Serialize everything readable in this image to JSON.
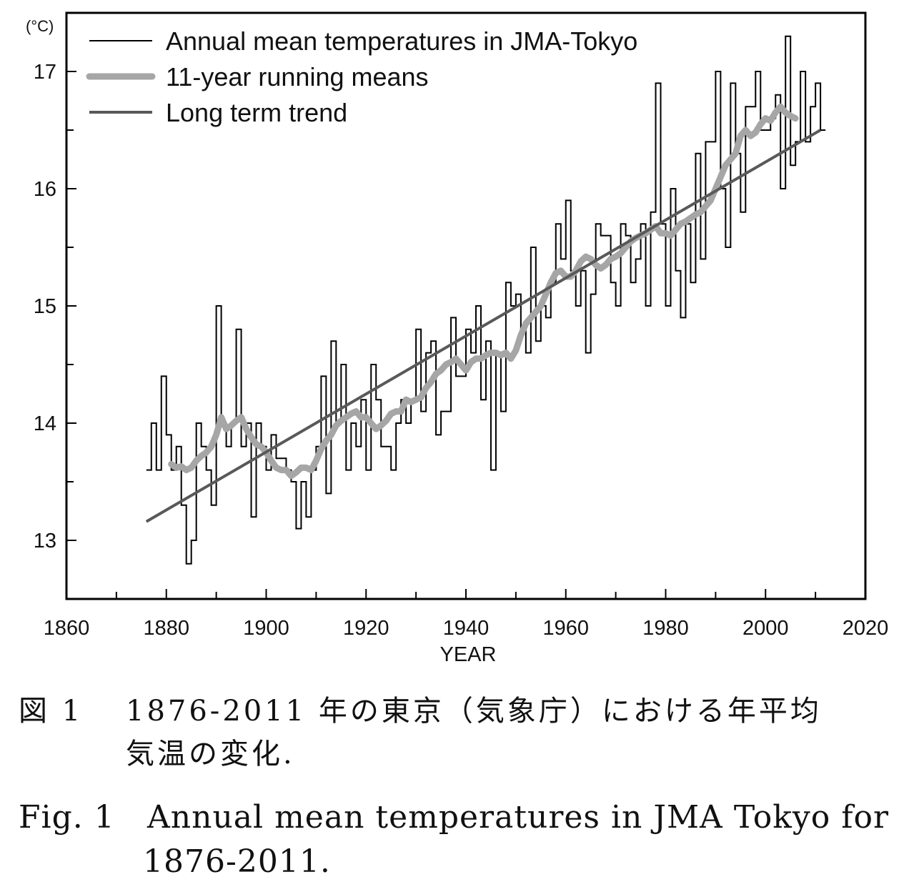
{
  "chart_data": {
    "type": "line",
    "title": "",
    "xlabel": "YEAR",
    "ylabel": "(°C)",
    "xlim": [
      1860,
      2020
    ],
    "ylim": [
      12.5,
      17.5
    ],
    "x_ticks": [
      1860,
      1880,
      1900,
      1920,
      1940,
      1960,
      1980,
      2000,
      2020
    ],
    "y_ticks": [
      13,
      14,
      15,
      16,
      17
    ],
    "grid": false,
    "legend_position": "top-left",
    "series": [
      {
        "name": "Annual mean temperatures in JMA-Tokyo",
        "style": "step",
        "color": "#000000",
        "x": [
          1876,
          1877,
          1878,
          1879,
          1880,
          1881,
          1882,
          1883,
          1884,
          1885,
          1886,
          1887,
          1888,
          1889,
          1890,
          1891,
          1892,
          1893,
          1894,
          1895,
          1896,
          1897,
          1898,
          1899,
          1900,
          1901,
          1902,
          1903,
          1904,
          1905,
          1906,
          1907,
          1908,
          1909,
          1910,
          1911,
          1912,
          1913,
          1914,
          1915,
          1916,
          1917,
          1918,
          1919,
          1920,
          1921,
          1922,
          1923,
          1924,
          1925,
          1926,
          1927,
          1928,
          1929,
          1930,
          1931,
          1932,
          1933,
          1934,
          1935,
          1936,
          1937,
          1938,
          1939,
          1940,
          1941,
          1942,
          1943,
          1944,
          1945,
          1946,
          1947,
          1948,
          1949,
          1950,
          1951,
          1952,
          1953,
          1954,
          1955,
          1956,
          1957,
          1958,
          1959,
          1960,
          1961,
          1962,
          1963,
          1964,
          1965,
          1966,
          1967,
          1968,
          1969,
          1970,
          1971,
          1972,
          1973,
          1974,
          1975,
          1976,
          1977,
          1978,
          1979,
          1980,
          1981,
          1982,
          1983,
          1984,
          1985,
          1986,
          1987,
          1988,
          1989,
          1990,
          1991,
          1992,
          1993,
          1994,
          1995,
          1996,
          1997,
          1998,
          1999,
          2000,
          2001,
          2002,
          2003,
          2004,
          2005,
          2006,
          2007,
          2008,
          2009,
          2010,
          2011
        ],
        "y": [
          13.6,
          14.0,
          13.6,
          14.4,
          13.9,
          13.6,
          13.8,
          13.3,
          12.8,
          13.0,
          14.0,
          13.8,
          13.6,
          13.3,
          15.0,
          14.0,
          13.8,
          14.0,
          14.8,
          13.8,
          14.0,
          13.2,
          14.0,
          13.8,
          13.6,
          13.9,
          13.7,
          13.7,
          13.6,
          13.5,
          13.1,
          13.5,
          13.2,
          13.6,
          13.8,
          14.4,
          13.4,
          14.7,
          14.0,
          14.5,
          13.6,
          14.0,
          13.8,
          14.2,
          13.6,
          14.5,
          14.2,
          13.8,
          13.8,
          13.6,
          14.0,
          14.2,
          14.0,
          14.2,
          14.8,
          14.1,
          14.6,
          14.7,
          13.9,
          14.1,
          14.1,
          14.9,
          14.4,
          14.4,
          14.8,
          14.6,
          15.0,
          14.2,
          14.7,
          13.6,
          14.6,
          14.1,
          15.2,
          15.0,
          15.1,
          14.8,
          14.6,
          15.5,
          14.7,
          15.0,
          14.9,
          15.2,
          15.7,
          15.4,
          15.9,
          15.3,
          15.0,
          15.3,
          14.6,
          15.1,
          15.7,
          15.6,
          15.6,
          15.2,
          15.0,
          15.7,
          15.6,
          15.2,
          15.4,
          15.7,
          15.0,
          15.8,
          16.9,
          15.7,
          15.0,
          16.0,
          15.3,
          14.9,
          15.7,
          15.2,
          16.3,
          15.4,
          16.4,
          16.4,
          17.0,
          16.0,
          15.5,
          16.9,
          16.3,
          15.8,
          16.7,
          16.7,
          17.0,
          16.5,
          16.5,
          16.6,
          16.8,
          16.0,
          17.3,
          16.2,
          16.4,
          17.0,
          16.4,
          16.7,
          16.9,
          16.5
        ]
      },
      {
        "name": "11-year running means",
        "color": "#a6a6a6",
        "x": [
          1881,
          1882,
          1883,
          1884,
          1885,
          1886,
          1887,
          1888,
          1889,
          1890,
          1891,
          1892,
          1893,
          1894,
          1895,
          1896,
          1897,
          1898,
          1899,
          1900,
          1901,
          1902,
          1903,
          1904,
          1905,
          1906,
          1907,
          1908,
          1909,
          1910,
          1911,
          1912,
          1913,
          1914,
          1915,
          1916,
          1917,
          1918,
          1919,
          1920,
          1921,
          1922,
          1923,
          1924,
          1925,
          1926,
          1927,
          1928,
          1929,
          1930,
          1931,
          1932,
          1933,
          1934,
          1935,
          1936,
          1937,
          1938,
          1939,
          1940,
          1941,
          1942,
          1943,
          1944,
          1945,
          1946,
          1947,
          1948,
          1949,
          1950,
          1951,
          1952,
          1953,
          1954,
          1955,
          1956,
          1957,
          1958,
          1959,
          1960,
          1961,
          1962,
          1963,
          1964,
          1965,
          1966,
          1967,
          1968,
          1969,
          1970,
          1971,
          1972,
          1973,
          1974,
          1975,
          1976,
          1977,
          1978,
          1979,
          1980,
          1981,
          1982,
          1983,
          1984,
          1985,
          1986,
          1987,
          1988,
          1989,
          1990,
          1991,
          1992,
          1993,
          1994,
          1995,
          1996,
          1997,
          1998,
          1999,
          2000,
          2001,
          2002,
          2003,
          2004,
          2005,
          2006
        ],
        "y": [
          13.65,
          13.62,
          13.63,
          13.6,
          13.62,
          13.68,
          13.72,
          13.75,
          13.8,
          13.9,
          14.05,
          13.95,
          13.98,
          14.02,
          14.05,
          13.95,
          13.88,
          13.82,
          13.8,
          13.75,
          13.68,
          13.62,
          13.6,
          13.6,
          13.55,
          13.58,
          13.62,
          13.62,
          13.6,
          13.68,
          13.78,
          13.85,
          13.9,
          13.98,
          14.02,
          14.05,
          14.08,
          14.1,
          14.05,
          14.05,
          14.0,
          13.95,
          13.98,
          14.02,
          14.08,
          14.1,
          14.1,
          14.2,
          14.18,
          14.2,
          14.22,
          14.3,
          14.35,
          14.42,
          14.45,
          14.5,
          14.52,
          14.55,
          14.5,
          14.45,
          14.52,
          14.55,
          14.55,
          14.58,
          14.6,
          14.6,
          14.58,
          14.6,
          14.55,
          14.62,
          14.75,
          14.85,
          14.9,
          14.95,
          15.0,
          15.1,
          15.2,
          15.28,
          15.3,
          15.25,
          15.25,
          15.3,
          15.38,
          15.42,
          15.4,
          15.35,
          15.32,
          15.35,
          15.4,
          15.42,
          15.45,
          15.5,
          15.55,
          15.58,
          15.6,
          15.62,
          15.65,
          15.68,
          15.62,
          15.62,
          15.6,
          15.65,
          15.7,
          15.72,
          15.75,
          15.78,
          15.8,
          15.85,
          15.9,
          16.0,
          16.1,
          16.2,
          16.25,
          16.3,
          16.45,
          16.5,
          16.45,
          16.48,
          16.55,
          16.6,
          16.58,
          16.65,
          16.7,
          16.65,
          16.62,
          16.6
        ]
      },
      {
        "name": "Long term trend",
        "color": "#595959",
        "x": [
          1876,
          2011
        ],
        "y": [
          13.16,
          16.5
        ]
      }
    ]
  },
  "caption": {
    "jp": {
      "number": "図 1",
      "line1": "1876-2011 年の東京（気象庁）における年平均",
      "line2": "気温の変化."
    },
    "en": {
      "number": "Fig. 1",
      "line1": "Annual mean temperatures in JMA Tokyo for",
      "line2": "1876-2011."
    }
  }
}
